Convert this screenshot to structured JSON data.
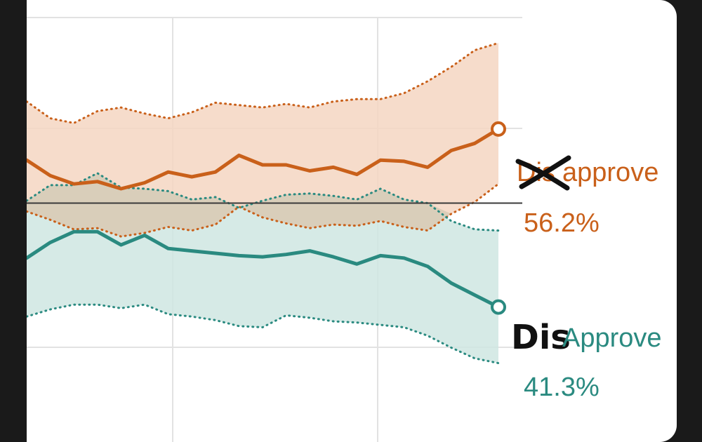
{
  "colors": {
    "orange": "#c9601a",
    "orange_fill": "#f4d6c2",
    "teal": "#2a8a80",
    "teal_fill": "#cfe6e2",
    "overlap_fill": "#d9cbb6",
    "grid": "#e2e2e2",
    "baseline": "#3a3a3a",
    "ink": "#111111"
  },
  "chart_data": {
    "type": "area",
    "ylim": [
      30,
      67
    ],
    "x": [
      0,
      5,
      10,
      15,
      20,
      25,
      30,
      35,
      40,
      45,
      50,
      55,
      60,
      65,
      70,
      75,
      80,
      85,
      90,
      95,
      100
    ],
    "series": [
      {
        "key": "disapprove",
        "name": "Disapprove",
        "color": "#c9601a",
        "values": [
          53.6,
          52.3,
          51.6,
          51.8,
          51.2,
          51.7,
          52.6,
          52.2,
          52.6,
          54.0,
          53.2,
          53.2,
          52.7,
          53.0,
          52.4,
          53.6,
          53.5,
          53.0,
          54.4,
          55.0,
          56.2
        ],
        "upper": [
          58.5,
          57.1,
          56.7,
          57.7,
          58.0,
          57.5,
          57.1,
          57.6,
          58.4,
          58.2,
          58.0,
          58.3,
          58.0,
          58.5,
          58.7,
          58.7,
          59.2,
          60.2,
          61.4,
          62.8,
          63.4
        ],
        "lower": [
          49.3,
          48.6,
          47.8,
          47.9,
          47.2,
          47.5,
          48.0,
          47.7,
          48.2,
          49.7,
          48.8,
          48.3,
          47.9,
          48.2,
          48.1,
          48.5,
          48.0,
          47.7,
          49.1,
          50.1,
          51.6
        ]
      },
      {
        "key": "approve",
        "name": "Approve",
        "color": "#2a8a80",
        "values": [
          45.4,
          46.7,
          47.6,
          47.6,
          46.5,
          47.3,
          46.2,
          46.0,
          45.8,
          45.6,
          45.5,
          45.7,
          46.0,
          45.5,
          44.9,
          45.6,
          45.4,
          44.7,
          43.3,
          42.3,
          41.3
        ],
        "upper": [
          50.2,
          51.5,
          51.5,
          52.5,
          51.3,
          51.2,
          51.0,
          50.3,
          50.5,
          49.6,
          50.2,
          50.7,
          50.8,
          50.6,
          50.3,
          51.2,
          50.3,
          50.0,
          48.5,
          47.8,
          47.7
        ],
        "lower": [
          40.5,
          41.1,
          41.5,
          41.5,
          41.2,
          41.5,
          40.7,
          40.5,
          40.2,
          39.7,
          39.6,
          40.6,
          40.4,
          40.1,
          40.0,
          39.8,
          39.6,
          38.9,
          37.9,
          37.0,
          36.6
        ]
      }
    ],
    "reference_line": 50,
    "annotations": [
      {
        "key": "disapprove",
        "label": "approve",
        "struck_prefix": "Dis",
        "value_label": "56.2%"
      },
      {
        "key": "approve",
        "label": "Approve",
        "handwritten_prefix": "Dis",
        "value_label": "41.3%"
      }
    ]
  }
}
